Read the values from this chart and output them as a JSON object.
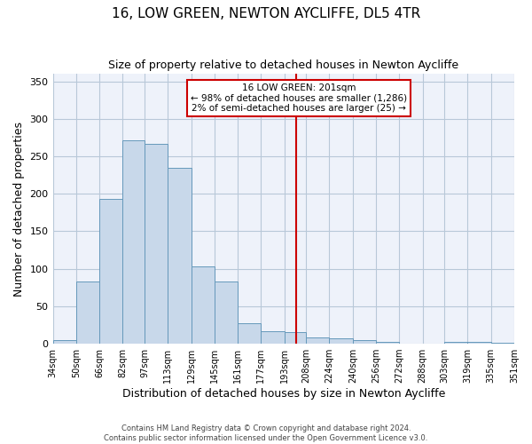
{
  "title": "16, LOW GREEN, NEWTON AYCLIFFE, DL5 4TR",
  "subtitle": "Size of property relative to detached houses in Newton Aycliffe",
  "xlabel": "Distribution of detached houses by size in Newton Aycliffe",
  "ylabel": "Number of detached properties",
  "bar_color": "#c8d8ea",
  "bar_edge_color": "#6699bb",
  "bins": [
    34,
    50,
    66,
    82,
    97,
    113,
    129,
    145,
    161,
    177,
    193,
    208,
    224,
    240,
    256,
    272,
    288,
    303,
    319,
    335,
    351
  ],
  "counts": [
    5,
    83,
    193,
    271,
    266,
    235,
    103,
    83,
    27,
    17,
    15,
    8,
    7,
    5,
    3,
    0,
    0,
    2,
    2,
    1
  ],
  "tick_labels": [
    "34sqm",
    "50sqm",
    "66sqm",
    "82sqm",
    "97sqm",
    "113sqm",
    "129sqm",
    "145sqm",
    "161sqm",
    "177sqm",
    "193sqm",
    "208sqm",
    "224sqm",
    "240sqm",
    "256sqm",
    "272sqm",
    "288sqm",
    "303sqm",
    "319sqm",
    "335sqm",
    "351sqm"
  ],
  "vline_x": 201,
  "vline_color": "#cc0000",
  "annotation_line1": "16 LOW GREEN: 201sqm",
  "annotation_line2": "← 98% of detached houses are smaller (1,286)",
  "annotation_line3": "2% of semi-detached houses are larger (25) →",
  "annotation_box_color": "#cc0000",
  "ylim": [
    0,
    360
  ],
  "yticks": [
    0,
    50,
    100,
    150,
    200,
    250,
    300,
    350
  ],
  "footer1": "Contains HM Land Registry data © Crown copyright and database right 2024.",
  "footer2": "Contains public sector information licensed under the Open Government Licence v3.0.",
  "bg_color": "#eef2fa",
  "grid_color": "#b8c8d8"
}
